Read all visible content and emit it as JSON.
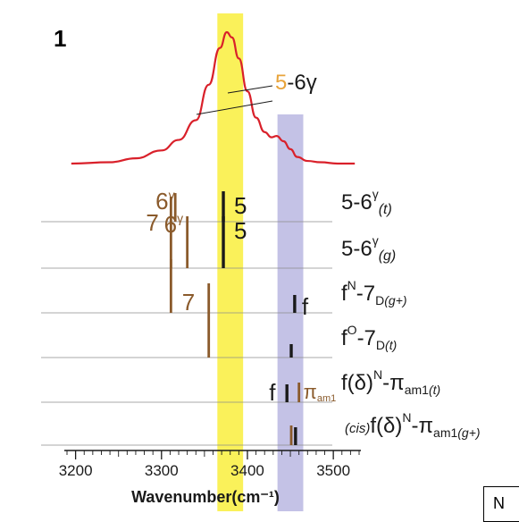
{
  "panel_label": "1",
  "corner_box_text": "N",
  "colors": {
    "spectrum": "#d9202a",
    "yellow_band": "#faf15a",
    "purple_band": "#c4c2e6",
    "brown": "#8a5a2b",
    "black": "#1a1a1a",
    "orange": "#e8a33a",
    "grid": "#8c8c8c"
  },
  "chart_data": {
    "type": "line",
    "xlabel": "Wavenumber(cm⁻¹)",
    "xlim": [
      3190,
      3530
    ],
    "x_ticks": [
      3200,
      3300,
      3400,
      3500
    ],
    "bands": [
      {
        "name": "yellow",
        "x_range": [
          3365,
          3395
        ]
      },
      {
        "name": "purple",
        "x_range": [
          3435,
          3465
        ]
      }
    ],
    "spectrum": {
      "x": [
        3195,
        3240,
        3270,
        3300,
        3320,
        3340,
        3355,
        3368,
        3376,
        3382,
        3390,
        3400,
        3410,
        3420,
        3428,
        3434,
        3442,
        3450,
        3458,
        3470,
        3485,
        3505,
        3525
      ],
      "y": [
        0.0,
        0.01,
        0.04,
        0.1,
        0.18,
        0.33,
        0.6,
        0.88,
        1.0,
        0.96,
        0.8,
        0.55,
        0.35,
        0.24,
        0.2,
        0.21,
        0.17,
        0.11,
        0.05,
        0.02,
        0.01,
        0.0,
        0.0
      ]
    },
    "spectrum_annotation": {
      "orange_part": "5",
      "rest": "-6γ"
    },
    "conformers": [
      {
        "label_main": "5-6",
        "label_sup": "γ",
        "label_sub": "(t)",
        "sticks": [
          {
            "x": 3316,
            "color": "brown",
            "height": 0.32,
            "label": "6",
            "label_sup": "γ"
          },
          {
            "x": 3372,
            "color": "black",
            "height": 0.34,
            "label": "5",
            "label_sup": ""
          }
        ]
      },
      {
        "label_main": "5-6",
        "label_sup": "γ",
        "label_sub": "(g)",
        "sticks": [
          {
            "x": 3311,
            "color": "brown",
            "height": 0.8,
            "label": "7",
            "label_sup": ""
          },
          {
            "x": 3330,
            "color": "brown",
            "height": 0.58,
            "label": "6",
            "label_sup": "γ"
          },
          {
            "x": 3372,
            "color": "black",
            "height": 0.58,
            "label": "5",
            "label_sup": ""
          }
        ]
      },
      {
        "label_main": "f",
        "label_sup": "N",
        "label_sub_pre": "-7",
        "label_sub": "D",
        "label_sub_italic": "(g+)",
        "sticks": [
          {
            "x": 3311,
            "color": "brown",
            "height": 0.6,
            "label": "",
            "label_sup": ""
          },
          {
            "x": 3455,
            "color": "black",
            "height": 0.2,
            "label": "f",
            "label_sup": ""
          }
        ]
      },
      {
        "label_main": "f",
        "label_sup": "O",
        "label_sub_pre": "-7",
        "label_sub": "D",
        "label_sub_italic": "(t)",
        "sticks": [
          {
            "x": 3355,
            "color": "brown",
            "height": 0.83,
            "label": "7",
            "label_sup": ""
          },
          {
            "x": 3451,
            "color": "black",
            "height": 0.15,
            "label": "",
            "label_sup": ""
          }
        ]
      },
      {
        "label_main": "f(δ)",
        "label_sup": "N",
        "label_sub_pre": "-π",
        "label_sub": "am1",
        "label_sub_italic": "(t)",
        "sticks": [
          {
            "x": 3446,
            "color": "black",
            "height": 0.2,
            "label": "f",
            "label_sup": ""
          },
          {
            "x": 3460,
            "color": "brown",
            "height": 0.22,
            "label": "π",
            "label_sup": "am1"
          }
        ]
      },
      {
        "label_prefix": "(cis)",
        "label_main": "f(δ)",
        "label_sup": "N",
        "label_sub_pre": "-π",
        "label_sub": "am1",
        "label_sub_italic": "(g+)",
        "sticks": [
          {
            "x": 3451,
            "color": "brown",
            "height": 0.22,
            "label": "",
            "label_sup": ""
          },
          {
            "x": 3456,
            "color": "black",
            "height": 0.2,
            "label": "",
            "label_sup": ""
          }
        ]
      }
    ]
  }
}
